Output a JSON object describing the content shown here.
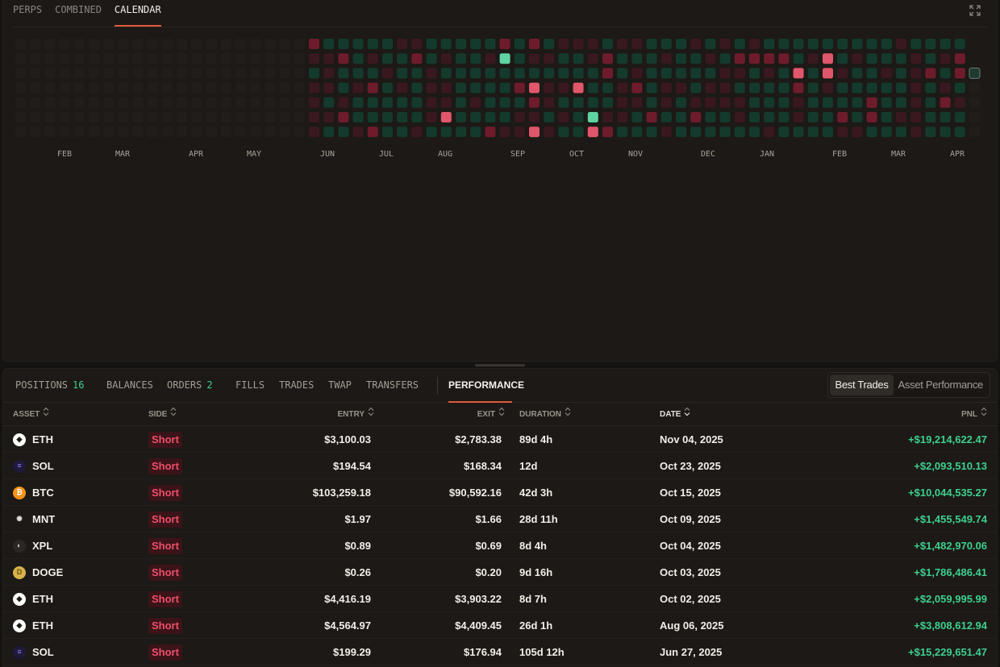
{
  "chart_tabs": [
    "PERPS",
    "COMBINED",
    "CALENDAR"
  ],
  "active_chart_tab": "CALENDAR",
  "calendar": {
    "months": [
      "FEB",
      "MAR",
      "APR",
      "MAY",
      "JUN",
      "JUL",
      "AUG",
      "SEP",
      "OCT",
      "NOV",
      "DEC",
      "JAN",
      "FEB",
      "MAR",
      "APR"
    ],
    "legend_colors": {
      "empty": "#201d1a",
      "profit_low": "#143a2d",
      "profit_high": "#5fd3a1",
      "loss_low": "#3a1820",
      "loss_mid": "#6e1c2c",
      "loss_high": "#e0566a"
    },
    "seed": 42
  },
  "bottom_tabs": [
    {
      "label": "POSITIONS",
      "count": "16"
    },
    {
      "label": "BALANCES",
      "count": ""
    },
    {
      "label": "ORDERS",
      "count": "2"
    },
    {
      "label": "FILLS",
      "count": ""
    },
    {
      "label": "TRADES",
      "count": ""
    },
    {
      "label": "TWAP",
      "count": ""
    },
    {
      "label": "TRANSFERS",
      "count": ""
    },
    {
      "label": "PERFORMANCE",
      "count": ""
    }
  ],
  "toggle": {
    "best_trades": "Best Trades",
    "asset_performance": "Asset Performance"
  },
  "columns": {
    "asset": "ASSET",
    "side": "SIDE",
    "entry": "ENTRY",
    "exit": "EXIT",
    "duration": "DURATION",
    "date": "DATE",
    "pnl": "PNL"
  },
  "trades": [
    {
      "asset": "ETH",
      "icon": "eth-icon",
      "side": "Short",
      "entry": "$3,100.03",
      "exit": "$2,783.38",
      "duration": "89d 4h",
      "date": "Nov 04, 2025",
      "pnl": "+$19,214,622.47"
    },
    {
      "asset": "SOL",
      "icon": "sol-icon",
      "side": "Short",
      "entry": "$194.54",
      "exit": "$168.34",
      "duration": "12d",
      "date": "Oct 23, 2025",
      "pnl": "+$2,093,510.13"
    },
    {
      "asset": "BTC",
      "icon": "btc-icon",
      "side": "Short",
      "entry": "$103,259.18",
      "exit": "$90,592.16",
      "duration": "42d 3h",
      "date": "Oct 15, 2025",
      "pnl": "+$10,044,535.27"
    },
    {
      "asset": "MNT",
      "icon": "mnt-icon",
      "side": "Short",
      "entry": "$1.97",
      "exit": "$1.66",
      "duration": "28d 11h",
      "date": "Oct 09, 2025",
      "pnl": "+$1,455,549.74"
    },
    {
      "asset": "XPL",
      "icon": "xpl-icon",
      "side": "Short",
      "entry": "$0.89",
      "exit": "$0.69",
      "duration": "8d 4h",
      "date": "Oct 04, 2025",
      "pnl": "+$1,482,970.06"
    },
    {
      "asset": "DOGE",
      "icon": "doge-icon",
      "side": "Short",
      "entry": "$0.26",
      "exit": "$0.20",
      "duration": "9d 16h",
      "date": "Oct 03, 2025",
      "pnl": "+$1,786,486.41"
    },
    {
      "asset": "ETH",
      "icon": "eth-icon",
      "side": "Short",
      "entry": "$4,416.19",
      "exit": "$3,903.22",
      "duration": "8d 7h",
      "date": "Oct 02, 2025",
      "pnl": "+$2,059,995.99"
    },
    {
      "asset": "ETH",
      "icon": "eth-icon",
      "side": "Short",
      "entry": "$4,564.97",
      "exit": "$4,409.45",
      "duration": "26d 1h",
      "date": "Aug 06, 2025",
      "pnl": "+$3,808,612.94"
    },
    {
      "asset": "SOL",
      "icon": "sol-icon",
      "side": "Short",
      "entry": "$199.29",
      "exit": "$176.94",
      "duration": "105d 12h",
      "date": "Jun 27, 2025",
      "pnl": "+$15,229,651.47"
    }
  ]
}
